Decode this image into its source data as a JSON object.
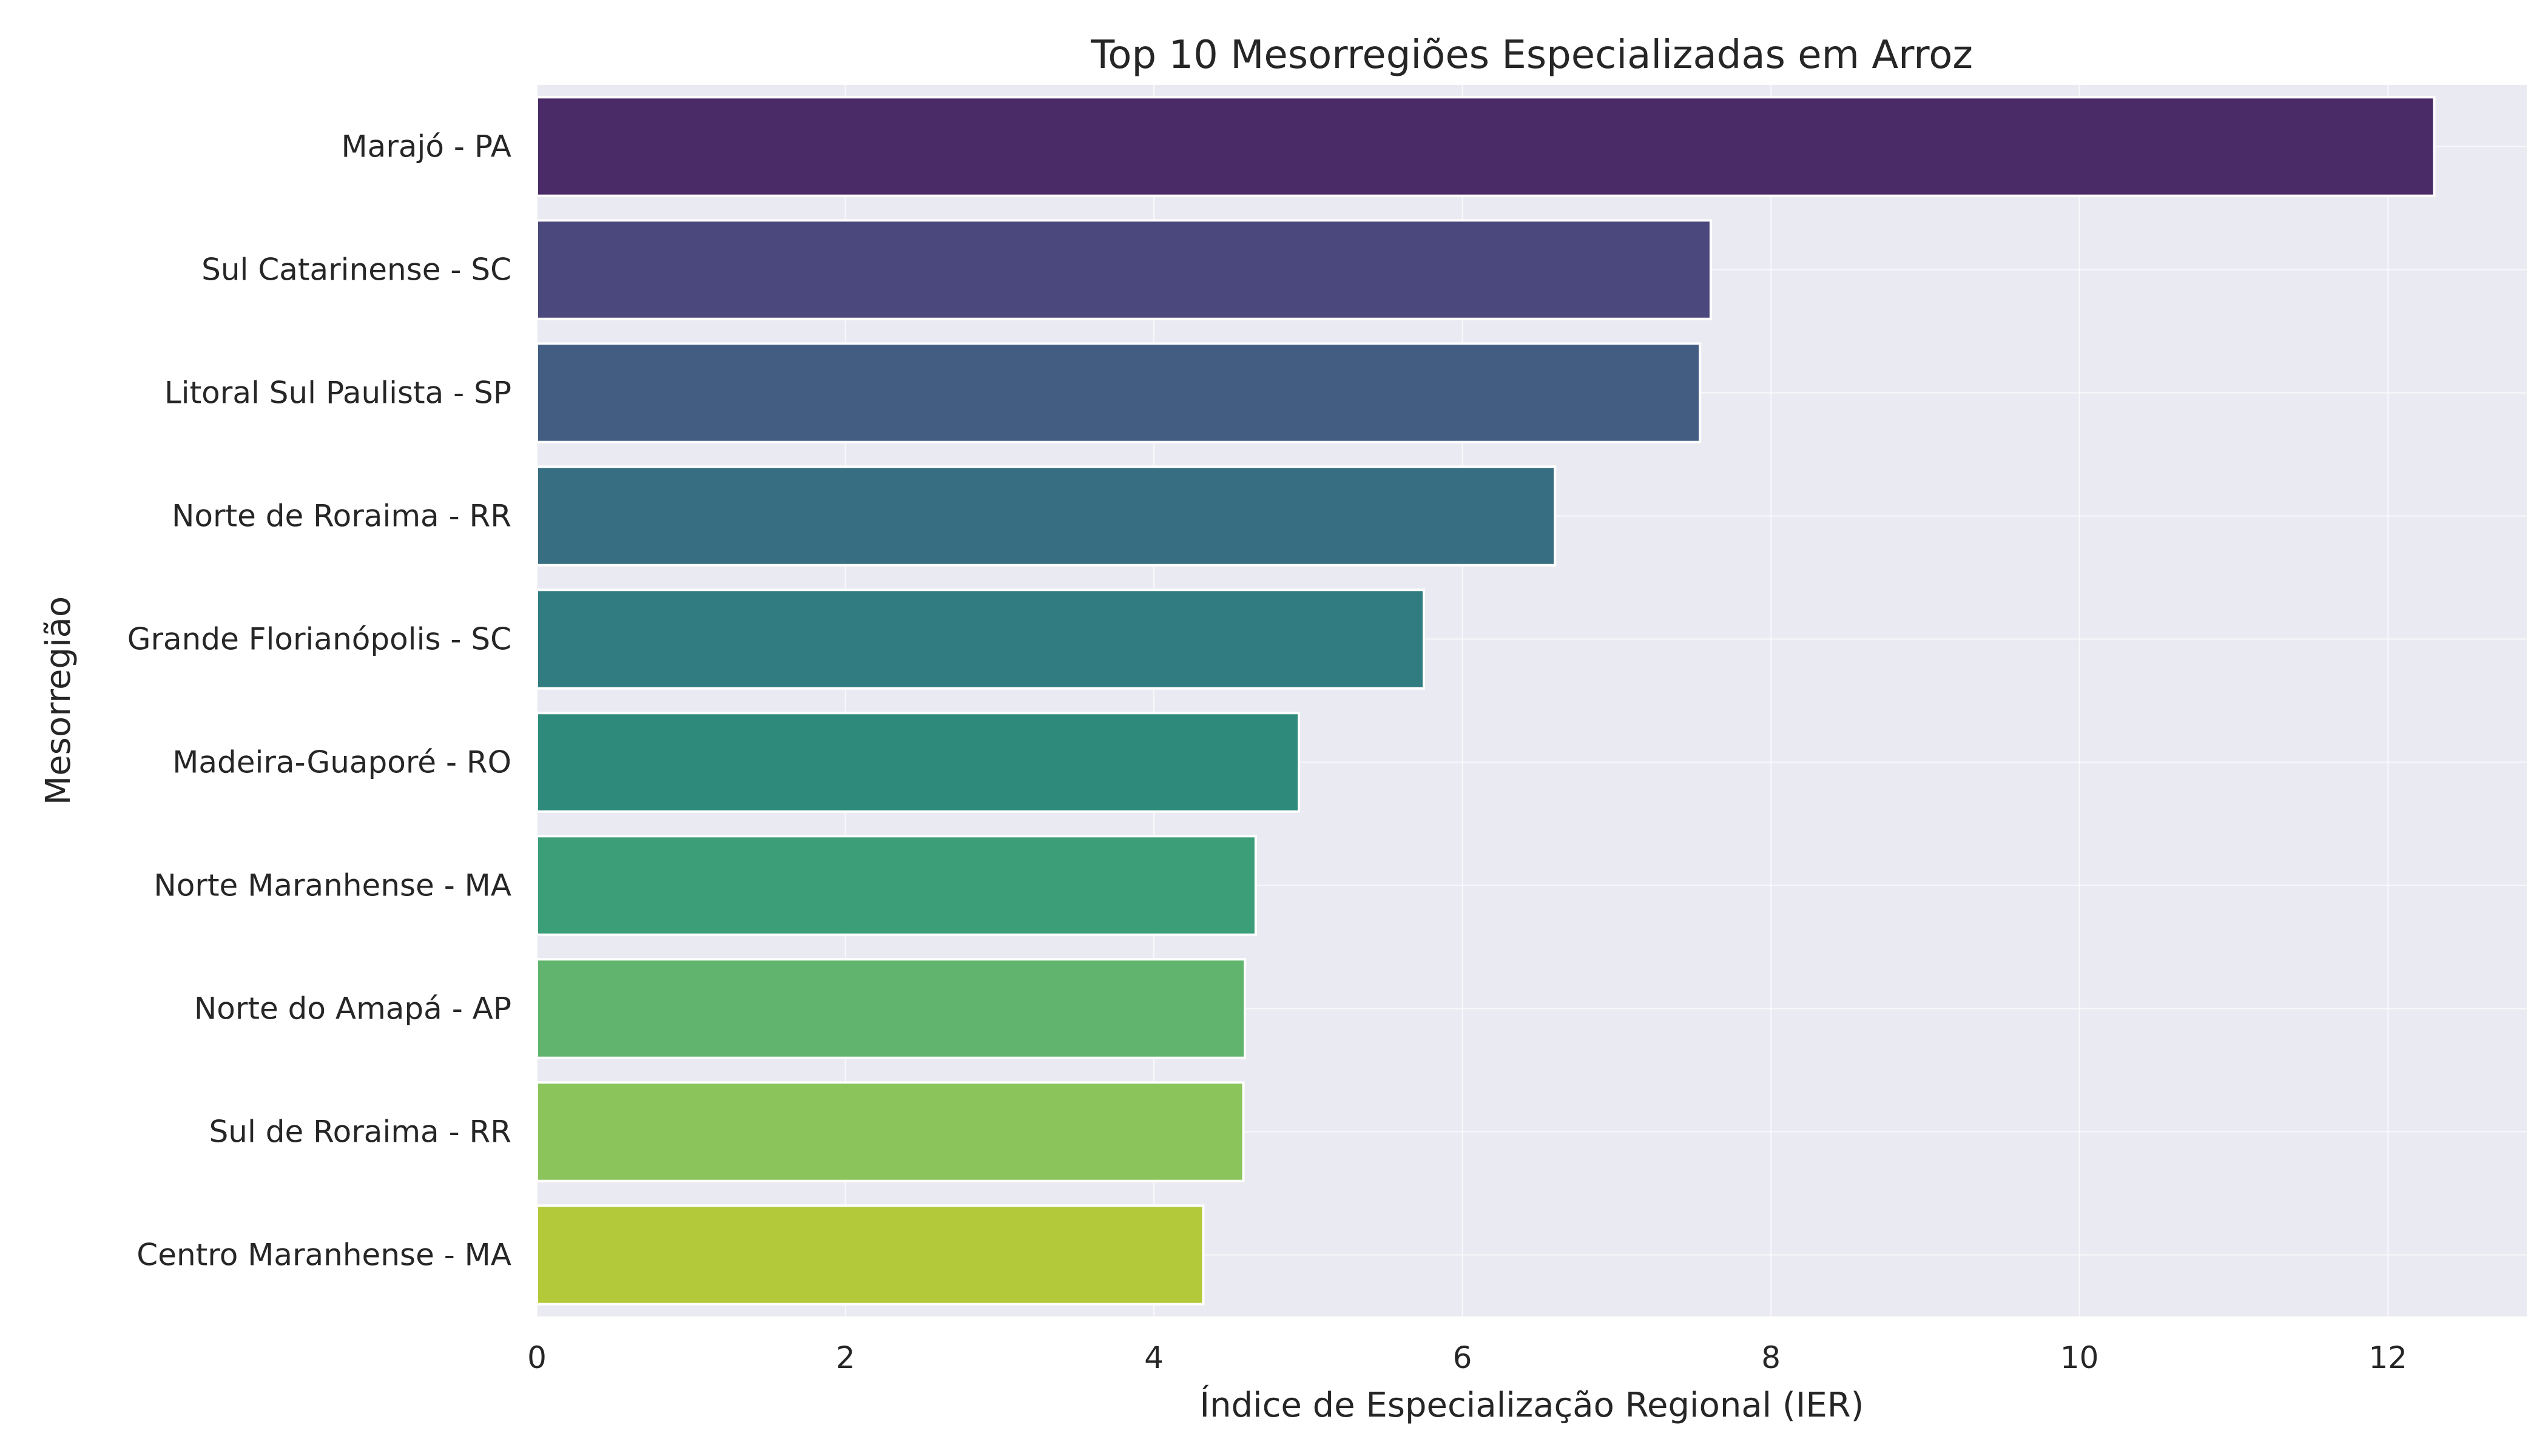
{
  "chart_data": {
    "type": "bar",
    "orientation": "horizontal",
    "title": "Top 10 Mesorregiões Especializadas em Arroz",
    "xlabel": "Índice de Especialização Regional (IER)",
    "ylabel": "Mesorregião",
    "xlim": [
      0,
      12.9
    ],
    "xticks": [
      0,
      2,
      4,
      6,
      8,
      10,
      12
    ],
    "grid": true,
    "palette": "viridis",
    "categories": [
      "Marajó - PA",
      "Sul Catarinense - SC",
      "Litoral Sul Paulista - SP",
      "Norte de Roraima - RR",
      "Grande Florianópolis - SC",
      "Madeira-Guaporé - RO",
      "Norte Maranhense - MA",
      "Norte do Amapá - AP",
      "Sul de Roraima - RR",
      "Centro Maranhense - MA"
    ],
    "values": [
      12.3,
      7.61,
      7.54,
      6.6,
      5.75,
      4.94,
      4.66,
      4.59,
      4.58,
      4.32
    ],
    "colors": [
      "#4a2b68",
      "#4a487d",
      "#435d82",
      "#386e81",
      "#317c80",
      "#2e8b7b",
      "#3c9e78",
      "#61b46d",
      "#8ac45b",
      "#b3c93a"
    ],
    "background": "#eaeaf2"
  }
}
